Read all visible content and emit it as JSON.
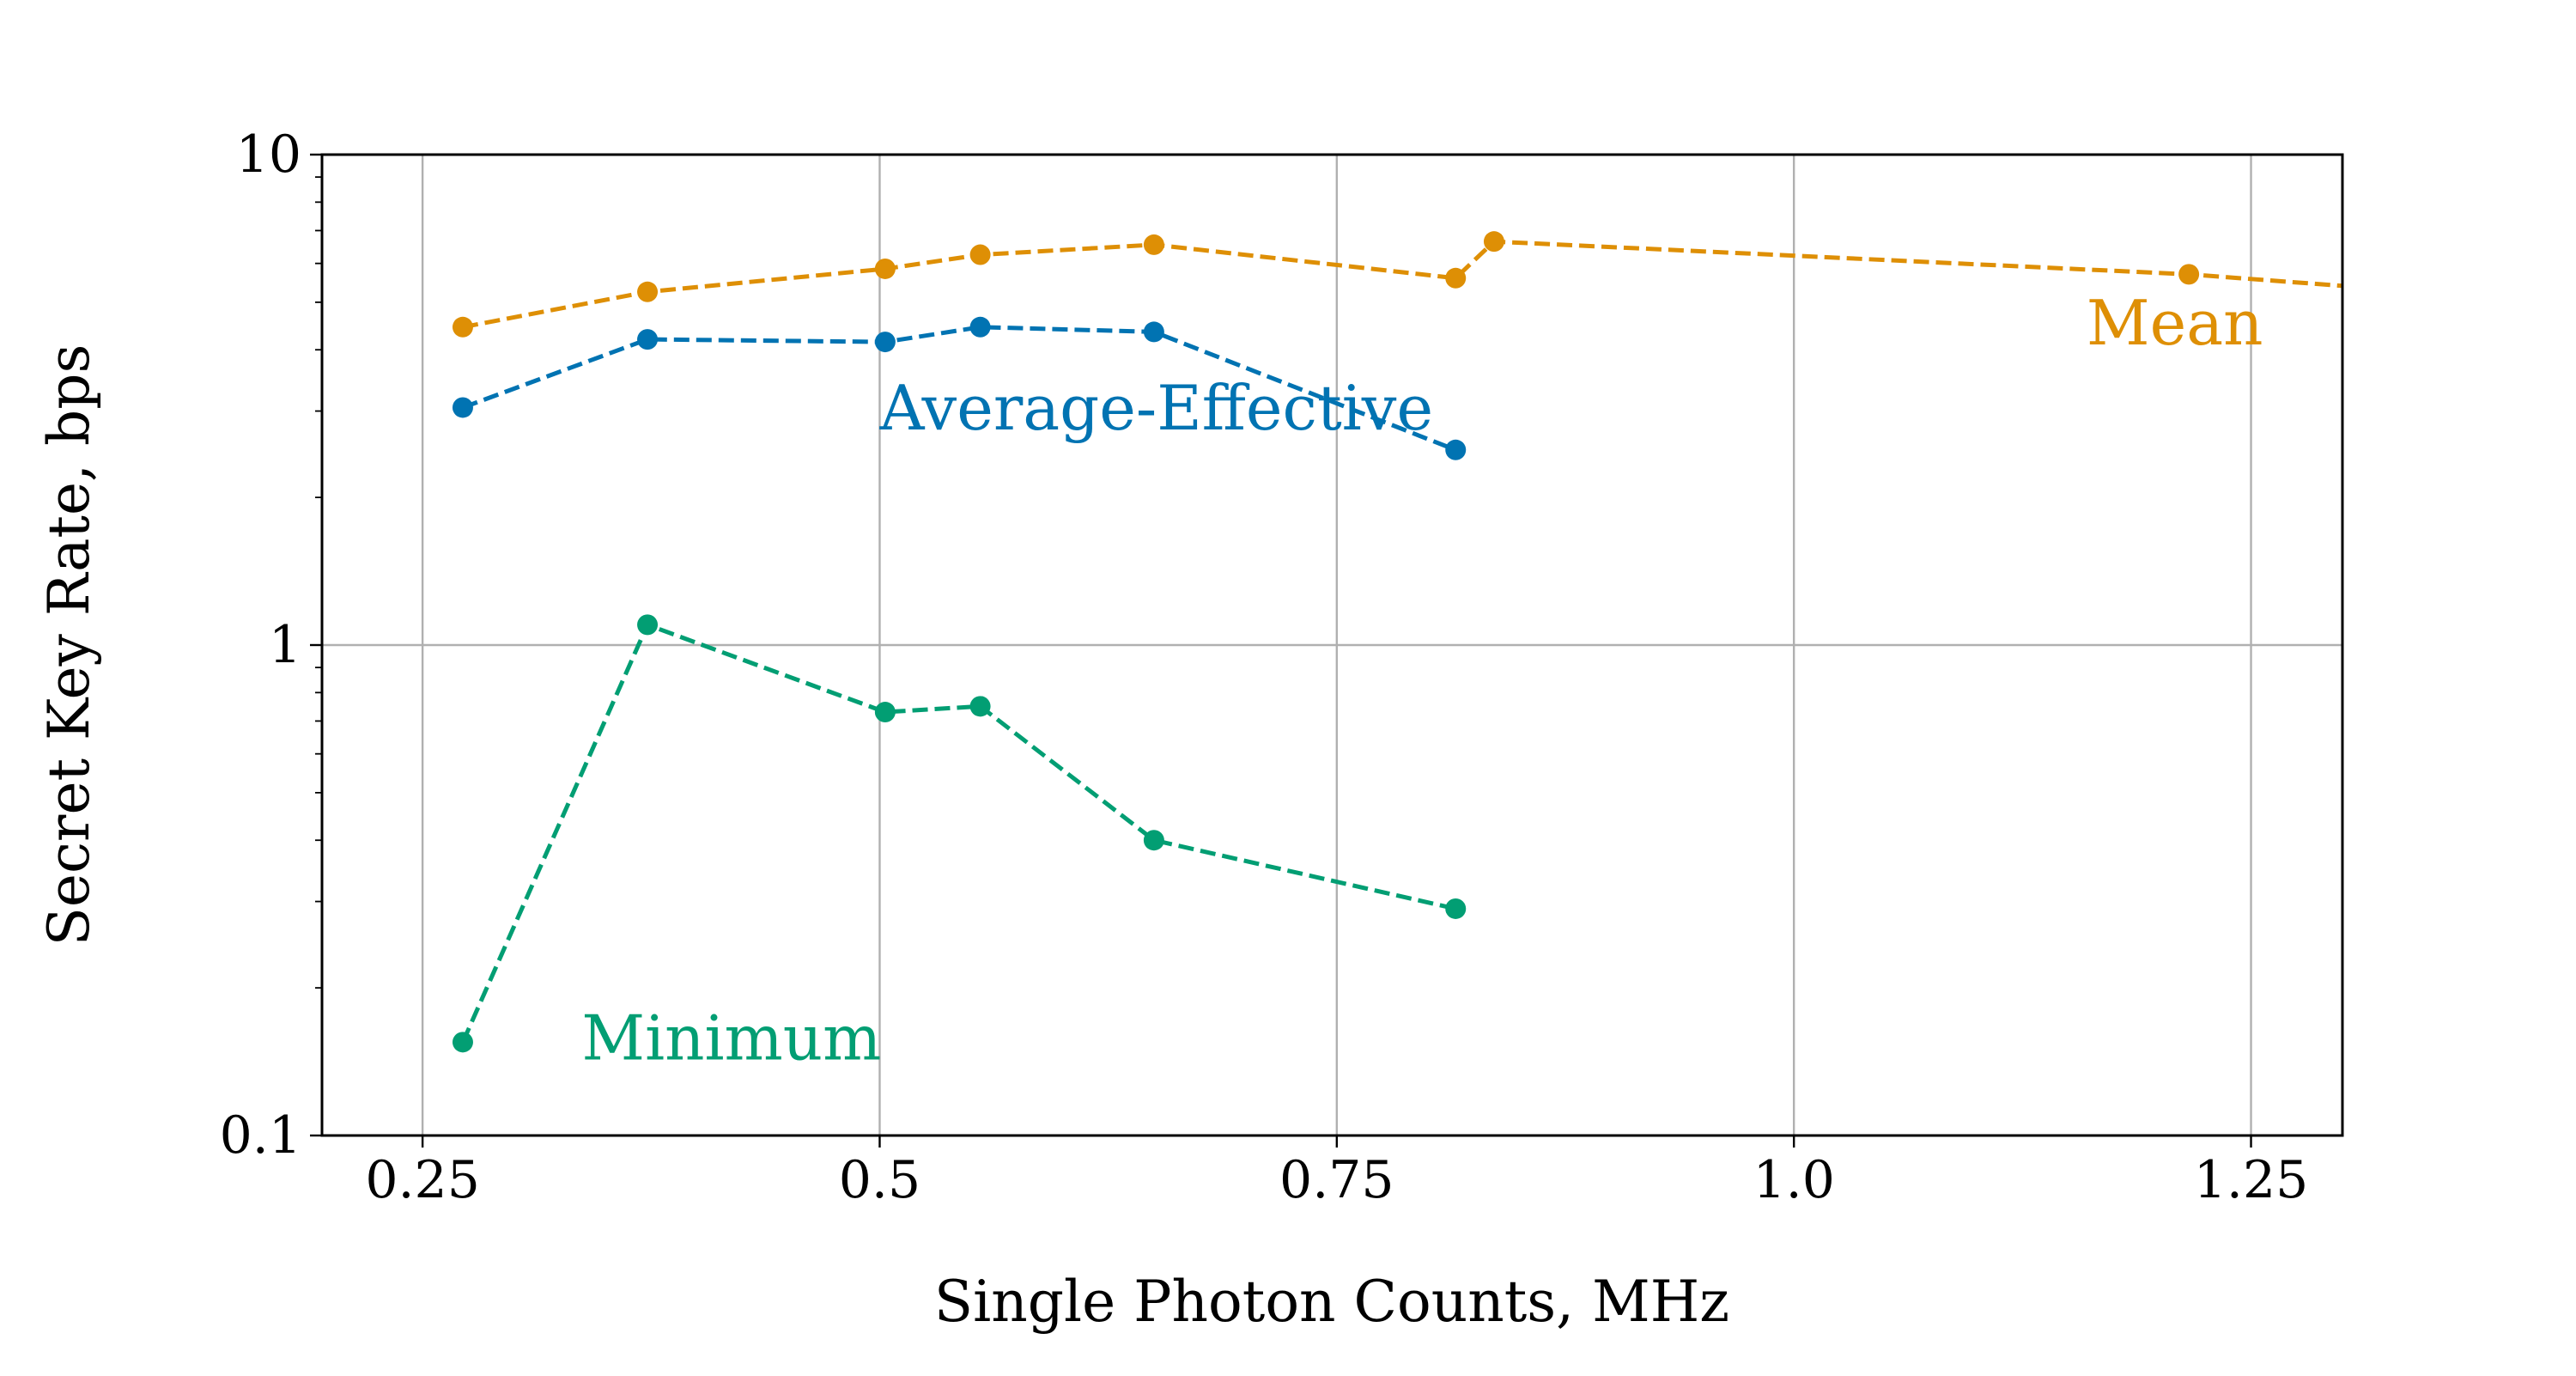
{
  "chart_data": {
    "type": "line",
    "title": "",
    "xlabel": "Single Photon Counts, MHz",
    "ylabel": "Secret Key Rate, bps",
    "xlim": [
      0.195,
      1.3
    ],
    "ylim": [
      0.1,
      10
    ],
    "yscale": "log",
    "grid": true,
    "x_ticks": [
      0.25,
      0.5,
      0.75,
      1.0,
      1.25
    ],
    "x_tick_labels": [
      "0.25",
      "0.5",
      "0.75",
      "1.0",
      "1.25"
    ],
    "y_ticks": [
      0.1,
      1,
      10
    ],
    "y_tick_labels": [
      "0.1",
      "1",
      "10"
    ],
    "series": [
      {
        "name": "Mean",
        "label": "Mean",
        "color": "#DE8F05",
        "x": [
          0.272,
          0.373,
          0.503,
          0.555,
          0.65,
          0.815,
          0.836,
          1.216,
          1.3
        ],
        "y": [
          4.45,
          5.25,
          5.85,
          6.25,
          6.55,
          5.6,
          6.65,
          5.7,
          5.4
        ],
        "markers": [
          true,
          true,
          true,
          true,
          true,
          true,
          true,
          true,
          false
        ],
        "label_anchor": [
          1.16,
          4.1
        ]
      },
      {
        "name": "Average-Effective",
        "label": "Average-Effective",
        "color": "#0173B2",
        "x": [
          0.272,
          0.373,
          0.503,
          0.555,
          0.65,
          0.815
        ],
        "y": [
          3.05,
          4.2,
          4.15,
          4.45,
          4.35,
          2.5
        ],
        "markers": [
          true,
          true,
          true,
          true,
          true,
          true
        ],
        "label_anchor": [
          0.5,
          2.75
        ]
      },
      {
        "name": "Minimum",
        "label": "Minimum",
        "color": "#029E73",
        "x": [
          0.272,
          0.373,
          0.503,
          0.555,
          0.65,
          0.815
        ],
        "y": [
          0.155,
          1.1,
          0.73,
          0.75,
          0.4,
          0.29
        ],
        "markers": [
          true,
          true,
          true,
          true,
          true,
          true
        ],
        "label_anchor": [
          0.337,
          0.143
        ]
      }
    ]
  }
}
